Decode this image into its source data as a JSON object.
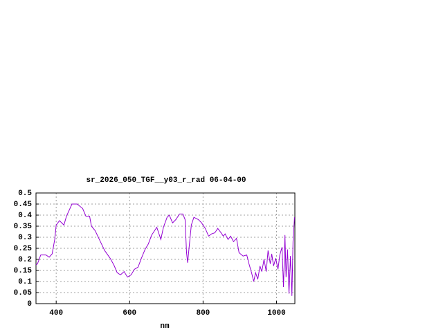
{
  "chart_data": {
    "type": "line",
    "title": "sr_2026_050_TGF__y03_r_rad 06-04-00",
    "x_label": "nm",
    "xlim": [
      345,
      1050
    ],
    "xticks": [
      400,
      600,
      800,
      1000
    ],
    "ylim": [
      0,
      0.5
    ],
    "yticks": [
      0,
      0.05,
      0.1,
      0.15,
      0.2,
      0.25,
      0.3,
      0.35,
      0.4,
      0.45,
      0.5
    ],
    "grid": true,
    "x": [
      345,
      349,
      358,
      372,
      381,
      389,
      396,
      400,
      409,
      421,
      428,
      443,
      457,
      472,
      481,
      491,
      496,
      506,
      519,
      532,
      547,
      557,
      566,
      575,
      585,
      594,
      604,
      613,
      623,
      632,
      642,
      651,
      660,
      674,
      679,
      685,
      692,
      702,
      708,
      717,
      726,
      736,
      745,
      751,
      755,
      758,
      762,
      768,
      775,
      787,
      796,
      806,
      815,
      823,
      832,
      840,
      849,
      855,
      860,
      868,
      875,
      883,
      891,
      898,
      909,
      919,
      925,
      932,
      938,
      943,
      949,
      955,
      960,
      966,
      972,
      977,
      983,
      987,
      992,
      998,
      1004,
      1009,
      1015,
      1019,
      1023,
      1026,
      1030,
      1034,
      1038,
      1042,
      1045,
      1049
    ],
    "series": [
      {
        "color": "#9400d3",
        "values": [
          0.175,
          0.18,
          0.22,
          0.22,
          0.21,
          0.225,
          0.29,
          0.355,
          0.375,
          0.355,
          0.395,
          0.45,
          0.45,
          0.43,
          0.395,
          0.395,
          0.35,
          0.33,
          0.285,
          0.24,
          0.205,
          0.175,
          0.14,
          0.13,
          0.145,
          0.12,
          0.13,
          0.155,
          0.165,
          0.205,
          0.245,
          0.27,
          0.31,
          0.345,
          0.32,
          0.29,
          0.345,
          0.39,
          0.4,
          0.365,
          0.38,
          0.405,
          0.405,
          0.38,
          0.23,
          0.185,
          0.255,
          0.355,
          0.39,
          0.38,
          0.365,
          0.34,
          0.305,
          0.315,
          0.32,
          0.34,
          0.32,
          0.305,
          0.315,
          0.29,
          0.305,
          0.28,
          0.295,
          0.23,
          0.215,
          0.22,
          0.18,
          0.14,
          0.1,
          0.14,
          0.11,
          0.17,
          0.145,
          0.2,
          0.145,
          0.24,
          0.18,
          0.225,
          0.17,
          0.205,
          0.155,
          0.22,
          0.255,
          0.075,
          0.31,
          0.12,
          0.245,
          0.045,
          0.215,
          0.035,
          0.28,
          0.39
        ]
      }
    ]
  }
}
